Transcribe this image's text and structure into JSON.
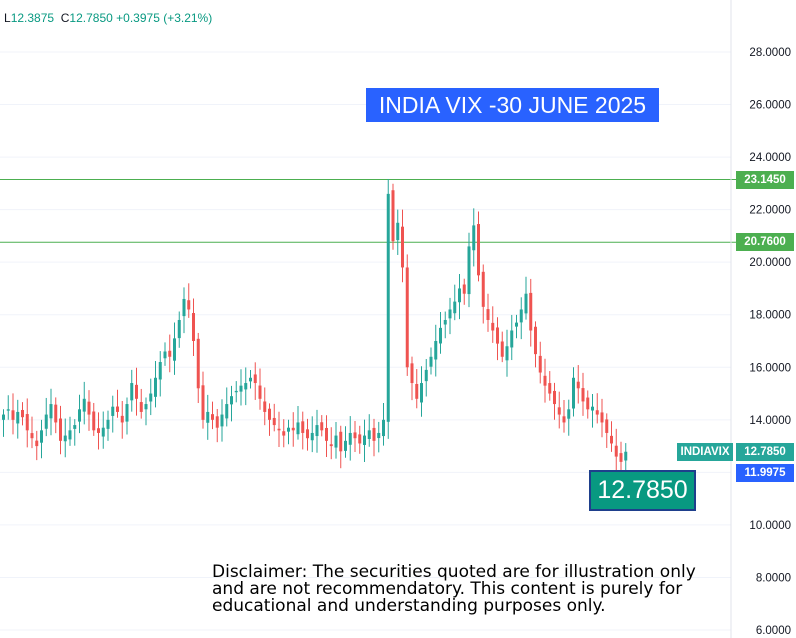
{
  "ohlc": {
    "l_label": "L",
    "l_value": "12.3875",
    "c_label": "C",
    "c_value": "12.7850",
    "change": "+0.3975 (+3.21%)"
  },
  "title": "INDIA VIX -30 JUNE 2025",
  "big_price": "12.7850",
  "disclaimer": "Disclaimer: The securities quoted are for illustration only and are not recommendatory. This content is purely for educational and understanding purposes only.",
  "labels": {
    "resistance_1": "23.1450",
    "resistance_2": "20.7600",
    "symbol": "INDIAVIX",
    "last_price": "12.7850",
    "low_price": "11.9975"
  },
  "colors": {
    "up": "#26a69a",
    "down": "#ef5350",
    "line": "#4caf50",
    "accent": "#2962ff",
    "price_tag": "#089981"
  },
  "chart_data": {
    "type": "candlestick",
    "ylim": [
      6,
      29
    ],
    "y_ticks": [
      "28.0000",
      "26.0000",
      "24.0000",
      "22.0000",
      "20.0000",
      "18.0000",
      "16.0000",
      "14.0000",
      "12.0000",
      "10.0000",
      "8.0000",
      "6.0000"
    ],
    "y_tick_values": [
      28,
      26,
      24,
      22,
      20,
      18,
      16,
      14,
      12,
      10,
      8,
      6
    ],
    "hlines": [
      23.145,
      20.76
    ],
    "closes": [
      14.2,
      14.4,
      14.0,
      14.3,
      14.1,
      13.6,
      13.3,
      13.0,
      13.6,
      14.2,
      14.6,
      13.9,
      13.2,
      13.4,
      13.6,
      13.8,
      14.4,
      14.8,
      14.2,
      13.6,
      13.5,
      13.7,
      14.0,
      14.5,
      14.3,
      13.9,
      14.6,
      15.4,
      14.8,
      14.3,
      14.6,
      15.0,
      15.6,
      16.2,
      16.6,
      16.4,
      17.1,
      17.8,
      18.6,
      18.2,
      17.0,
      15.2,
      14.0,
      14.3,
      14.0,
      13.7,
      14.2,
      14.6,
      14.9,
      15.1,
      15.3,
      15.4,
      15.6,
      15.4,
      14.8,
      14.3,
      14.0,
      13.8,
      13.6,
      13.4,
      13.7,
      13.6,
      13.9,
      13.5,
      13.3,
      13.5,
      13.8,
      13.6,
      13.2,
      13.0,
      13.4,
      12.8,
      13.2,
      13.5,
      13.3,
      13.1,
      13.4,
      13.6,
      13.2,
      13.5,
      14.0,
      22.6,
      20.8,
      21.5,
      19.8,
      16.0,
      15.4,
      14.8,
      15.4,
      15.9,
      16.4,
      17.0,
      17.5,
      17.8,
      18.2,
      18.5,
      19.0,
      18.8,
      20.6,
      21.4,
      19.5,
      18.3,
      17.8,
      17.4,
      16.9,
      16.4,
      16.8,
      17.4,
      17.7,
      18.2,
      18.8,
      17.4,
      16.5,
      15.8,
      15.3,
      15.0,
      14.6,
      14.2,
      13.9,
      14.4,
      15.6,
      15.2,
      14.7,
      14.4,
      14.5,
      14.2,
      13.9,
      13.5,
      13.1,
      12.6,
      12.4,
      12.785
    ]
  }
}
